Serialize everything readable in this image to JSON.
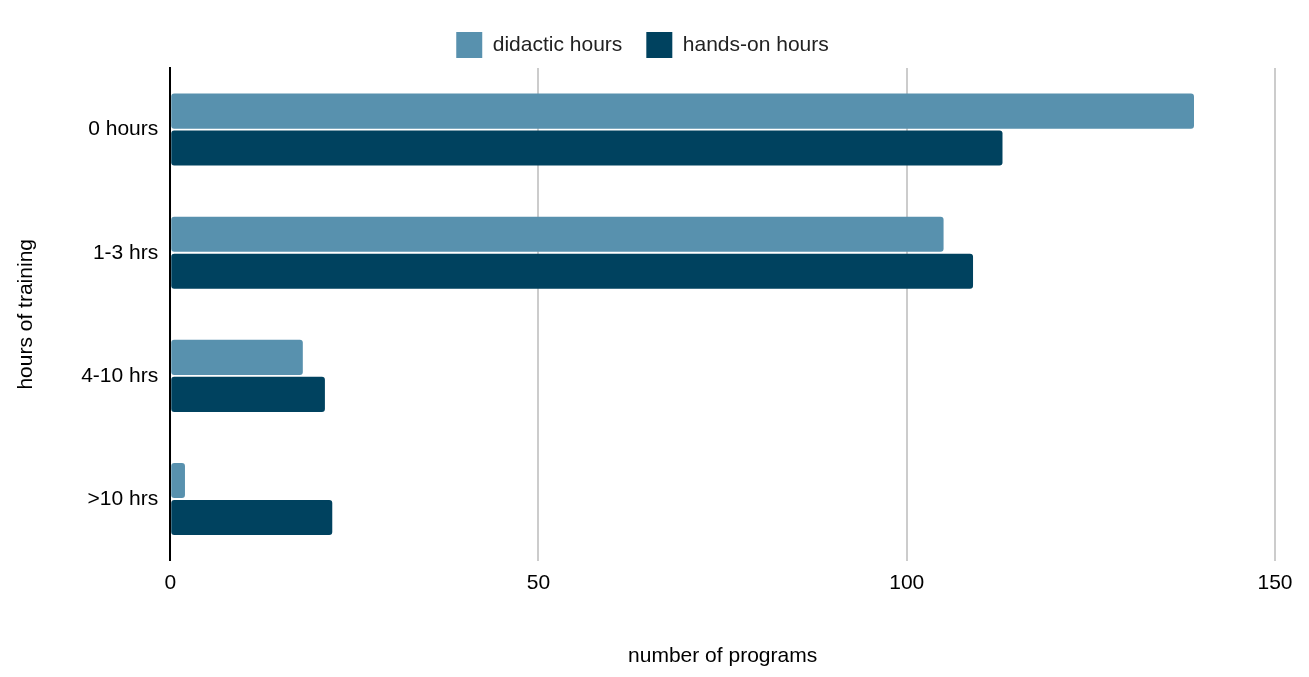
{
  "chart_data": {
    "type": "bar",
    "orientation": "horizontal",
    "xlabel": "number of programs",
    "ylabel": "hours of training",
    "categories": [
      "0 hours",
      "1-3 hrs",
      "4-10 hrs",
      ">10 hrs"
    ],
    "series": [
      {
        "name": "didactic hours",
        "color": "#5891ae",
        "values": [
          139,
          105,
          18,
          2
        ]
      },
      {
        "name": "hands-on hours",
        "color": "#00425f",
        "values": [
          113,
          109,
          21,
          22
        ]
      }
    ],
    "xlim": [
      0,
      150
    ],
    "xticks": [
      0,
      50,
      100,
      150
    ],
    "grid": "x",
    "legend": "top"
  }
}
